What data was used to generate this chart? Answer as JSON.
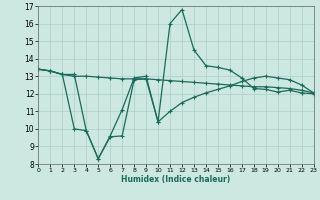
{
  "title": "",
  "xlabel": "Humidex (Indice chaleur)",
  "xlim": [
    0,
    23
  ],
  "ylim": [
    8,
    17
  ],
  "yticks": [
    8,
    9,
    10,
    11,
    12,
    13,
    14,
    15,
    16,
    17
  ],
  "xticks": [
    0,
    1,
    2,
    3,
    4,
    5,
    6,
    7,
    8,
    9,
    10,
    11,
    12,
    13,
    14,
    15,
    16,
    17,
    18,
    19,
    20,
    21,
    22,
    23
  ],
  "background_color": "#cce8e0",
  "grid_color": "#aacfc8",
  "line_color": "#1a6b5a",
  "line1_x": [
    0,
    1,
    2,
    3,
    4,
    5,
    6,
    7,
    8,
    9,
    10,
    11,
    12,
    13,
    14,
    15,
    16,
    17,
    18,
    19,
    20,
    21,
    22,
    23
  ],
  "line1_y": [
    13.4,
    13.3,
    13.1,
    13.1,
    9.9,
    8.3,
    9.6,
    11.1,
    12.9,
    13.0,
    10.4,
    16.0,
    16.8,
    14.5,
    13.6,
    13.5,
    13.35,
    12.9,
    12.3,
    12.25,
    12.1,
    12.2,
    12.05,
    12.0
  ],
  "line2_x": [
    0,
    1,
    2,
    3,
    4,
    5,
    6,
    7,
    8,
    9,
    10,
    11,
    12,
    13,
    14,
    15,
    16,
    17,
    18,
    19,
    20,
    21,
    22,
    23
  ],
  "line2_y": [
    13.4,
    13.3,
    13.1,
    13.0,
    13.0,
    12.95,
    12.9,
    12.85,
    12.85,
    12.85,
    12.8,
    12.75,
    12.7,
    12.65,
    12.6,
    12.55,
    12.5,
    12.45,
    12.4,
    12.4,
    12.35,
    12.3,
    12.2,
    12.05
  ],
  "line3_x": [
    0,
    1,
    2,
    3,
    4,
    5,
    6,
    7,
    8,
    9,
    10,
    11,
    12,
    13,
    14,
    15,
    16,
    17,
    18,
    19,
    20,
    21,
    22,
    23
  ],
  "line3_y": [
    13.4,
    13.3,
    13.1,
    10.0,
    9.9,
    8.3,
    9.55,
    9.6,
    12.8,
    12.85,
    10.4,
    11.0,
    11.5,
    11.8,
    12.05,
    12.25,
    12.45,
    12.7,
    12.9,
    13.0,
    12.9,
    12.8,
    12.5,
    12.05
  ],
  "marker": "+",
  "markersize": 3,
  "linewidth": 0.9
}
